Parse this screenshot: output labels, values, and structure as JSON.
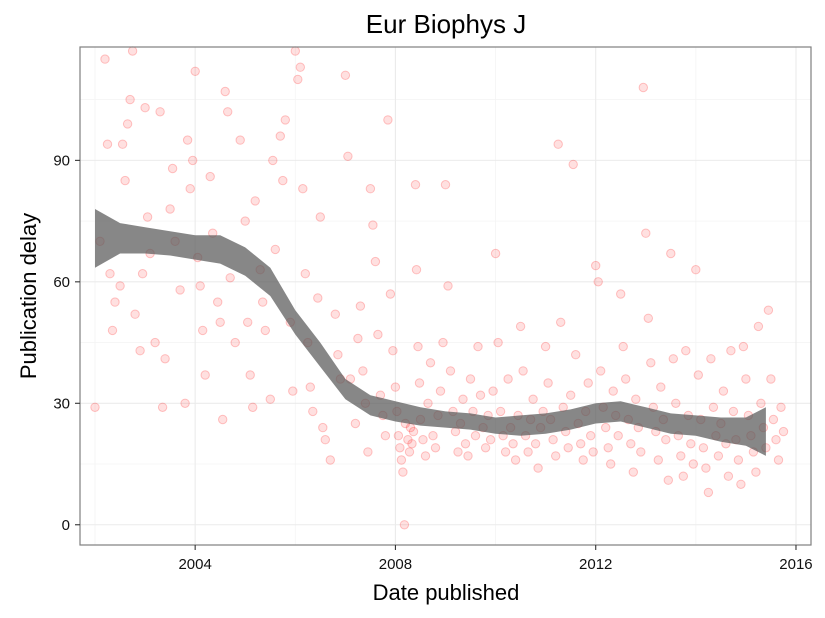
{
  "chart_data": {
    "type": "scatter",
    "title": "Eur Biophys J",
    "xlabel": "Date published",
    "ylabel": "Publication delay",
    "xlim": [
      2001.7,
      2016.3
    ],
    "ylim": [
      -5,
      118
    ],
    "x_ticks": [
      2004,
      2008,
      2012,
      2016
    ],
    "x_tick_labels": [
      "2004",
      "2008",
      "2012",
      "2016"
    ],
    "y_ticks": [
      0,
      30,
      60,
      90
    ],
    "y_tick_labels": [
      "0",
      "30",
      "60",
      "90"
    ],
    "grid": true,
    "colors": {
      "points": "#ff0000",
      "smooth_band": "#595959"
    },
    "smooth": {
      "type": "loess",
      "x": [
        2002.0,
        2002.5,
        2003.0,
        2003.5,
        2004.0,
        2004.5,
        2005.0,
        2005.5,
        2006.0,
        2006.5,
        2007.0,
        2007.5,
        2008.0,
        2008.5,
        2009.0,
        2009.5,
        2010.0,
        2010.5,
        2011.0,
        2011.5,
        2012.0,
        2012.5,
        2013.0,
        2013.5,
        2014.0,
        2014.5,
        2015.0,
        2015.4
      ],
      "y": [
        70.5,
        70.5,
        70.0,
        69.5,
        68.5,
        68.0,
        65.0,
        60.0,
        50.0,
        42.0,
        33.5,
        29.5,
        28.0,
        26.5,
        26.0,
        25.5,
        24.5,
        24.5,
        25.0,
        26.0,
        27.5,
        28.0,
        26.5,
        25.0,
        24.5,
        23.5,
        23.0,
        23.0
      ],
      "lower": [
        63.5,
        67.0,
        67.0,
        66.5,
        65.5,
        64.5,
        61.5,
        56.5,
        47.0,
        39.0,
        31.0,
        27.0,
        25.5,
        24.5,
        24.0,
        23.5,
        22.5,
        22.0,
        22.5,
        23.5,
        25.0,
        25.5,
        24.0,
        22.5,
        22.0,
        20.5,
        19.5,
        17.0
      ],
      "upper": [
        78.0,
        74.5,
        73.5,
        72.5,
        71.5,
        71.5,
        68.5,
        63.5,
        53.0,
        45.0,
        36.0,
        32.0,
        30.5,
        29.0,
        28.0,
        27.5,
        26.5,
        27.0,
        27.5,
        28.5,
        30.0,
        30.5,
        29.0,
        27.5,
        27.0,
        26.5,
        26.5,
        29.0
      ]
    },
    "points": [
      [
        2002.0,
        29
      ],
      [
        2002.1,
        70
      ],
      [
        2002.2,
        115
      ],
      [
        2002.25,
        94
      ],
      [
        2002.3,
        62
      ],
      [
        2002.35,
        48
      ],
      [
        2002.4,
        55
      ],
      [
        2002.5,
        59
      ],
      [
        2002.55,
        94
      ],
      [
        2002.6,
        85
      ],
      [
        2002.65,
        99
      ],
      [
        2002.7,
        105
      ],
      [
        2002.75,
        117
      ],
      [
        2002.8,
        52
      ],
      [
        2002.9,
        43
      ],
      [
        2002.95,
        62
      ],
      [
        2003.0,
        103
      ],
      [
        2003.05,
        76
      ],
      [
        2003.1,
        67
      ],
      [
        2003.2,
        45
      ],
      [
        2003.3,
        102
      ],
      [
        2003.35,
        29
      ],
      [
        2003.4,
        41
      ],
      [
        2003.5,
        78
      ],
      [
        2003.55,
        88
      ],
      [
        2003.6,
        70
      ],
      [
        2003.7,
        58
      ],
      [
        2003.8,
        30
      ],
      [
        2003.85,
        95
      ],
      [
        2003.9,
        83
      ],
      [
        2003.95,
        90
      ],
      [
        2004.0,
        112
      ],
      [
        2004.05,
        66
      ],
      [
        2004.1,
        59
      ],
      [
        2004.15,
        48
      ],
      [
        2004.2,
        37
      ],
      [
        2004.3,
        86
      ],
      [
        2004.35,
        72
      ],
      [
        2004.45,
        55
      ],
      [
        2004.5,
        50
      ],
      [
        2004.55,
        26
      ],
      [
        2004.6,
        107
      ],
      [
        2004.65,
        102
      ],
      [
        2004.7,
        61
      ],
      [
        2004.8,
        45
      ],
      [
        2004.9,
        95
      ],
      [
        2005.0,
        75
      ],
      [
        2005.05,
        50
      ],
      [
        2005.1,
        37
      ],
      [
        2005.15,
        29
      ],
      [
        2005.2,
        80
      ],
      [
        2005.3,
        63
      ],
      [
        2005.35,
        55
      ],
      [
        2005.4,
        48
      ],
      [
        2005.5,
        31
      ],
      [
        2005.55,
        90
      ],
      [
        2005.6,
        68
      ],
      [
        2005.7,
        96
      ],
      [
        2005.75,
        85
      ],
      [
        2005.8,
        100
      ],
      [
        2005.9,
        50
      ],
      [
        2005.95,
        33
      ],
      [
        2006.0,
        117
      ],
      [
        2006.05,
        110
      ],
      [
        2006.1,
        113
      ],
      [
        2006.15,
        83
      ],
      [
        2006.2,
        62
      ],
      [
        2006.25,
        45
      ],
      [
        2006.3,
        34
      ],
      [
        2006.35,
        28
      ],
      [
        2006.45,
        56
      ],
      [
        2006.5,
        76
      ],
      [
        2006.55,
        24
      ],
      [
        2006.6,
        21
      ],
      [
        2006.7,
        16
      ],
      [
        2006.8,
        52
      ],
      [
        2006.85,
        42
      ],
      [
        2006.9,
        36
      ],
      [
        2007.0,
        111
      ],
      [
        2007.05,
        91
      ],
      [
        2007.1,
        36
      ],
      [
        2007.2,
        25
      ],
      [
        2007.25,
        46
      ],
      [
        2007.3,
        54
      ],
      [
        2007.35,
        38
      ],
      [
        2007.4,
        30
      ],
      [
        2007.45,
        18
      ],
      [
        2007.5,
        83
      ],
      [
        2007.55,
        74
      ],
      [
        2007.6,
        65
      ],
      [
        2007.65,
        47
      ],
      [
        2007.7,
        32
      ],
      [
        2007.75,
        27
      ],
      [
        2007.8,
        22
      ],
      [
        2007.85,
        100
      ],
      [
        2007.9,
        57
      ],
      [
        2007.95,
        43
      ],
      [
        2008.0,
        34
      ],
      [
        2008.03,
        28
      ],
      [
        2008.06,
        22
      ],
      [
        2008.09,
        19
      ],
      [
        2008.12,
        16
      ],
      [
        2008.15,
        13
      ],
      [
        2008.18,
        0
      ],
      [
        2008.2,
        25
      ],
      [
        2008.25,
        21
      ],
      [
        2008.28,
        18
      ],
      [
        2008.3,
        24
      ],
      [
        2008.33,
        20
      ],
      [
        2008.36,
        23
      ],
      [
        2008.4,
        84
      ],
      [
        2008.42,
        63
      ],
      [
        2008.45,
        44
      ],
      [
        2008.48,
        35
      ],
      [
        2008.5,
        26
      ],
      [
        2008.55,
        21
      ],
      [
        2008.6,
        17
      ],
      [
        2008.65,
        30
      ],
      [
        2008.7,
        40
      ],
      [
        2008.75,
        22
      ],
      [
        2008.8,
        19
      ],
      [
        2008.85,
        27
      ],
      [
        2008.9,
        33
      ],
      [
        2008.95,
        45
      ],
      [
        2009.0,
        84
      ],
      [
        2009.05,
        59
      ],
      [
        2009.1,
        38
      ],
      [
        2009.15,
        28
      ],
      [
        2009.2,
        23
      ],
      [
        2009.25,
        18
      ],
      [
        2009.3,
        25
      ],
      [
        2009.35,
        31
      ],
      [
        2009.4,
        20
      ],
      [
        2009.45,
        17
      ],
      [
        2009.5,
        36
      ],
      [
        2009.55,
        28
      ],
      [
        2009.6,
        22
      ],
      [
        2009.65,
        44
      ],
      [
        2009.7,
        32
      ],
      [
        2009.75,
        24
      ],
      [
        2009.8,
        19
      ],
      [
        2009.85,
        27
      ],
      [
        2009.9,
        21
      ],
      [
        2009.95,
        33
      ],
      [
        2010.0,
        67
      ],
      [
        2010.05,
        45
      ],
      [
        2010.1,
        28
      ],
      [
        2010.15,
        22
      ],
      [
        2010.2,
        18
      ],
      [
        2010.25,
        36
      ],
      [
        2010.3,
        24
      ],
      [
        2010.35,
        20
      ],
      [
        2010.4,
        16
      ],
      [
        2010.45,
        27
      ],
      [
        2010.5,
        49
      ],
      [
        2010.55,
        38
      ],
      [
        2010.6,
        22
      ],
      [
        2010.65,
        18
      ],
      [
        2010.7,
        26
      ],
      [
        2010.75,
        31
      ],
      [
        2010.8,
        20
      ],
      [
        2010.85,
        14
      ],
      [
        2010.9,
        24
      ],
      [
        2010.95,
        28
      ],
      [
        2011.0,
        44
      ],
      [
        2011.05,
        35
      ],
      [
        2011.1,
        26
      ],
      [
        2011.15,
        21
      ],
      [
        2011.2,
        17
      ],
      [
        2011.25,
        94
      ],
      [
        2011.3,
        50
      ],
      [
        2011.35,
        29
      ],
      [
        2011.4,
        23
      ],
      [
        2011.45,
        19
      ],
      [
        2011.5,
        32
      ],
      [
        2011.55,
        89
      ],
      [
        2011.6,
        42
      ],
      [
        2011.65,
        25
      ],
      [
        2011.7,
        20
      ],
      [
        2011.75,
        16
      ],
      [
        2011.8,
        28
      ],
      [
        2011.85,
        35
      ],
      [
        2011.9,
        22
      ],
      [
        2011.95,
        18
      ],
      [
        2012.0,
        64
      ],
      [
        2012.05,
        60
      ],
      [
        2012.1,
        38
      ],
      [
        2012.15,
        29
      ],
      [
        2012.2,
        24
      ],
      [
        2012.25,
        19
      ],
      [
        2012.3,
        15
      ],
      [
        2012.35,
        33
      ],
      [
        2012.4,
        27
      ],
      [
        2012.45,
        22
      ],
      [
        2012.5,
        57
      ],
      [
        2012.55,
        44
      ],
      [
        2012.6,
        36
      ],
      [
        2012.65,
        26
      ],
      [
        2012.7,
        20
      ],
      [
        2012.75,
        13
      ],
      [
        2012.8,
        31
      ],
      [
        2012.85,
        24
      ],
      [
        2012.9,
        18
      ],
      [
        2012.95,
        108
      ],
      [
        2013.0,
        72
      ],
      [
        2013.05,
        51
      ],
      [
        2013.1,
        40
      ],
      [
        2013.15,
        29
      ],
      [
        2013.2,
        23
      ],
      [
        2013.25,
        16
      ],
      [
        2013.3,
        34
      ],
      [
        2013.35,
        26
      ],
      [
        2013.4,
        21
      ],
      [
        2013.45,
        11
      ],
      [
        2013.5,
        67
      ],
      [
        2013.55,
        41
      ],
      [
        2013.6,
        30
      ],
      [
        2013.65,
        22
      ],
      [
        2013.7,
        17
      ],
      [
        2013.75,
        12
      ],
      [
        2013.8,
        43
      ],
      [
        2013.85,
        27
      ],
      [
        2013.9,
        20
      ],
      [
        2013.95,
        15
      ],
      [
        2014.0,
        63
      ],
      [
        2014.05,
        37
      ],
      [
        2014.1,
        26
      ],
      [
        2014.15,
        19
      ],
      [
        2014.2,
        14
      ],
      [
        2014.25,
        8
      ],
      [
        2014.3,
        41
      ],
      [
        2014.35,
        29
      ],
      [
        2014.4,
        22
      ],
      [
        2014.45,
        17
      ],
      [
        2014.5,
        25
      ],
      [
        2014.55,
        33
      ],
      [
        2014.6,
        20
      ],
      [
        2014.65,
        12
      ],
      [
        2014.7,
        43
      ],
      [
        2014.75,
        28
      ],
      [
        2014.8,
        21
      ],
      [
        2014.85,
        16
      ],
      [
        2014.9,
        10
      ],
      [
        2014.95,
        44
      ],
      [
        2015.0,
        36
      ],
      [
        2015.05,
        27
      ],
      [
        2015.1,
        22
      ],
      [
        2015.15,
        18
      ],
      [
        2015.2,
        13
      ],
      [
        2015.25,
        49
      ],
      [
        2015.3,
        30
      ],
      [
        2015.35,
        24
      ],
      [
        2015.4,
        19
      ],
      [
        2015.45,
        53
      ],
      [
        2015.5,
        36
      ],
      [
        2015.55,
        26
      ],
      [
        2015.6,
        21
      ],
      [
        2015.65,
        16
      ],
      [
        2015.7,
        29
      ],
      [
        2015.75,
        23
      ]
    ]
  }
}
